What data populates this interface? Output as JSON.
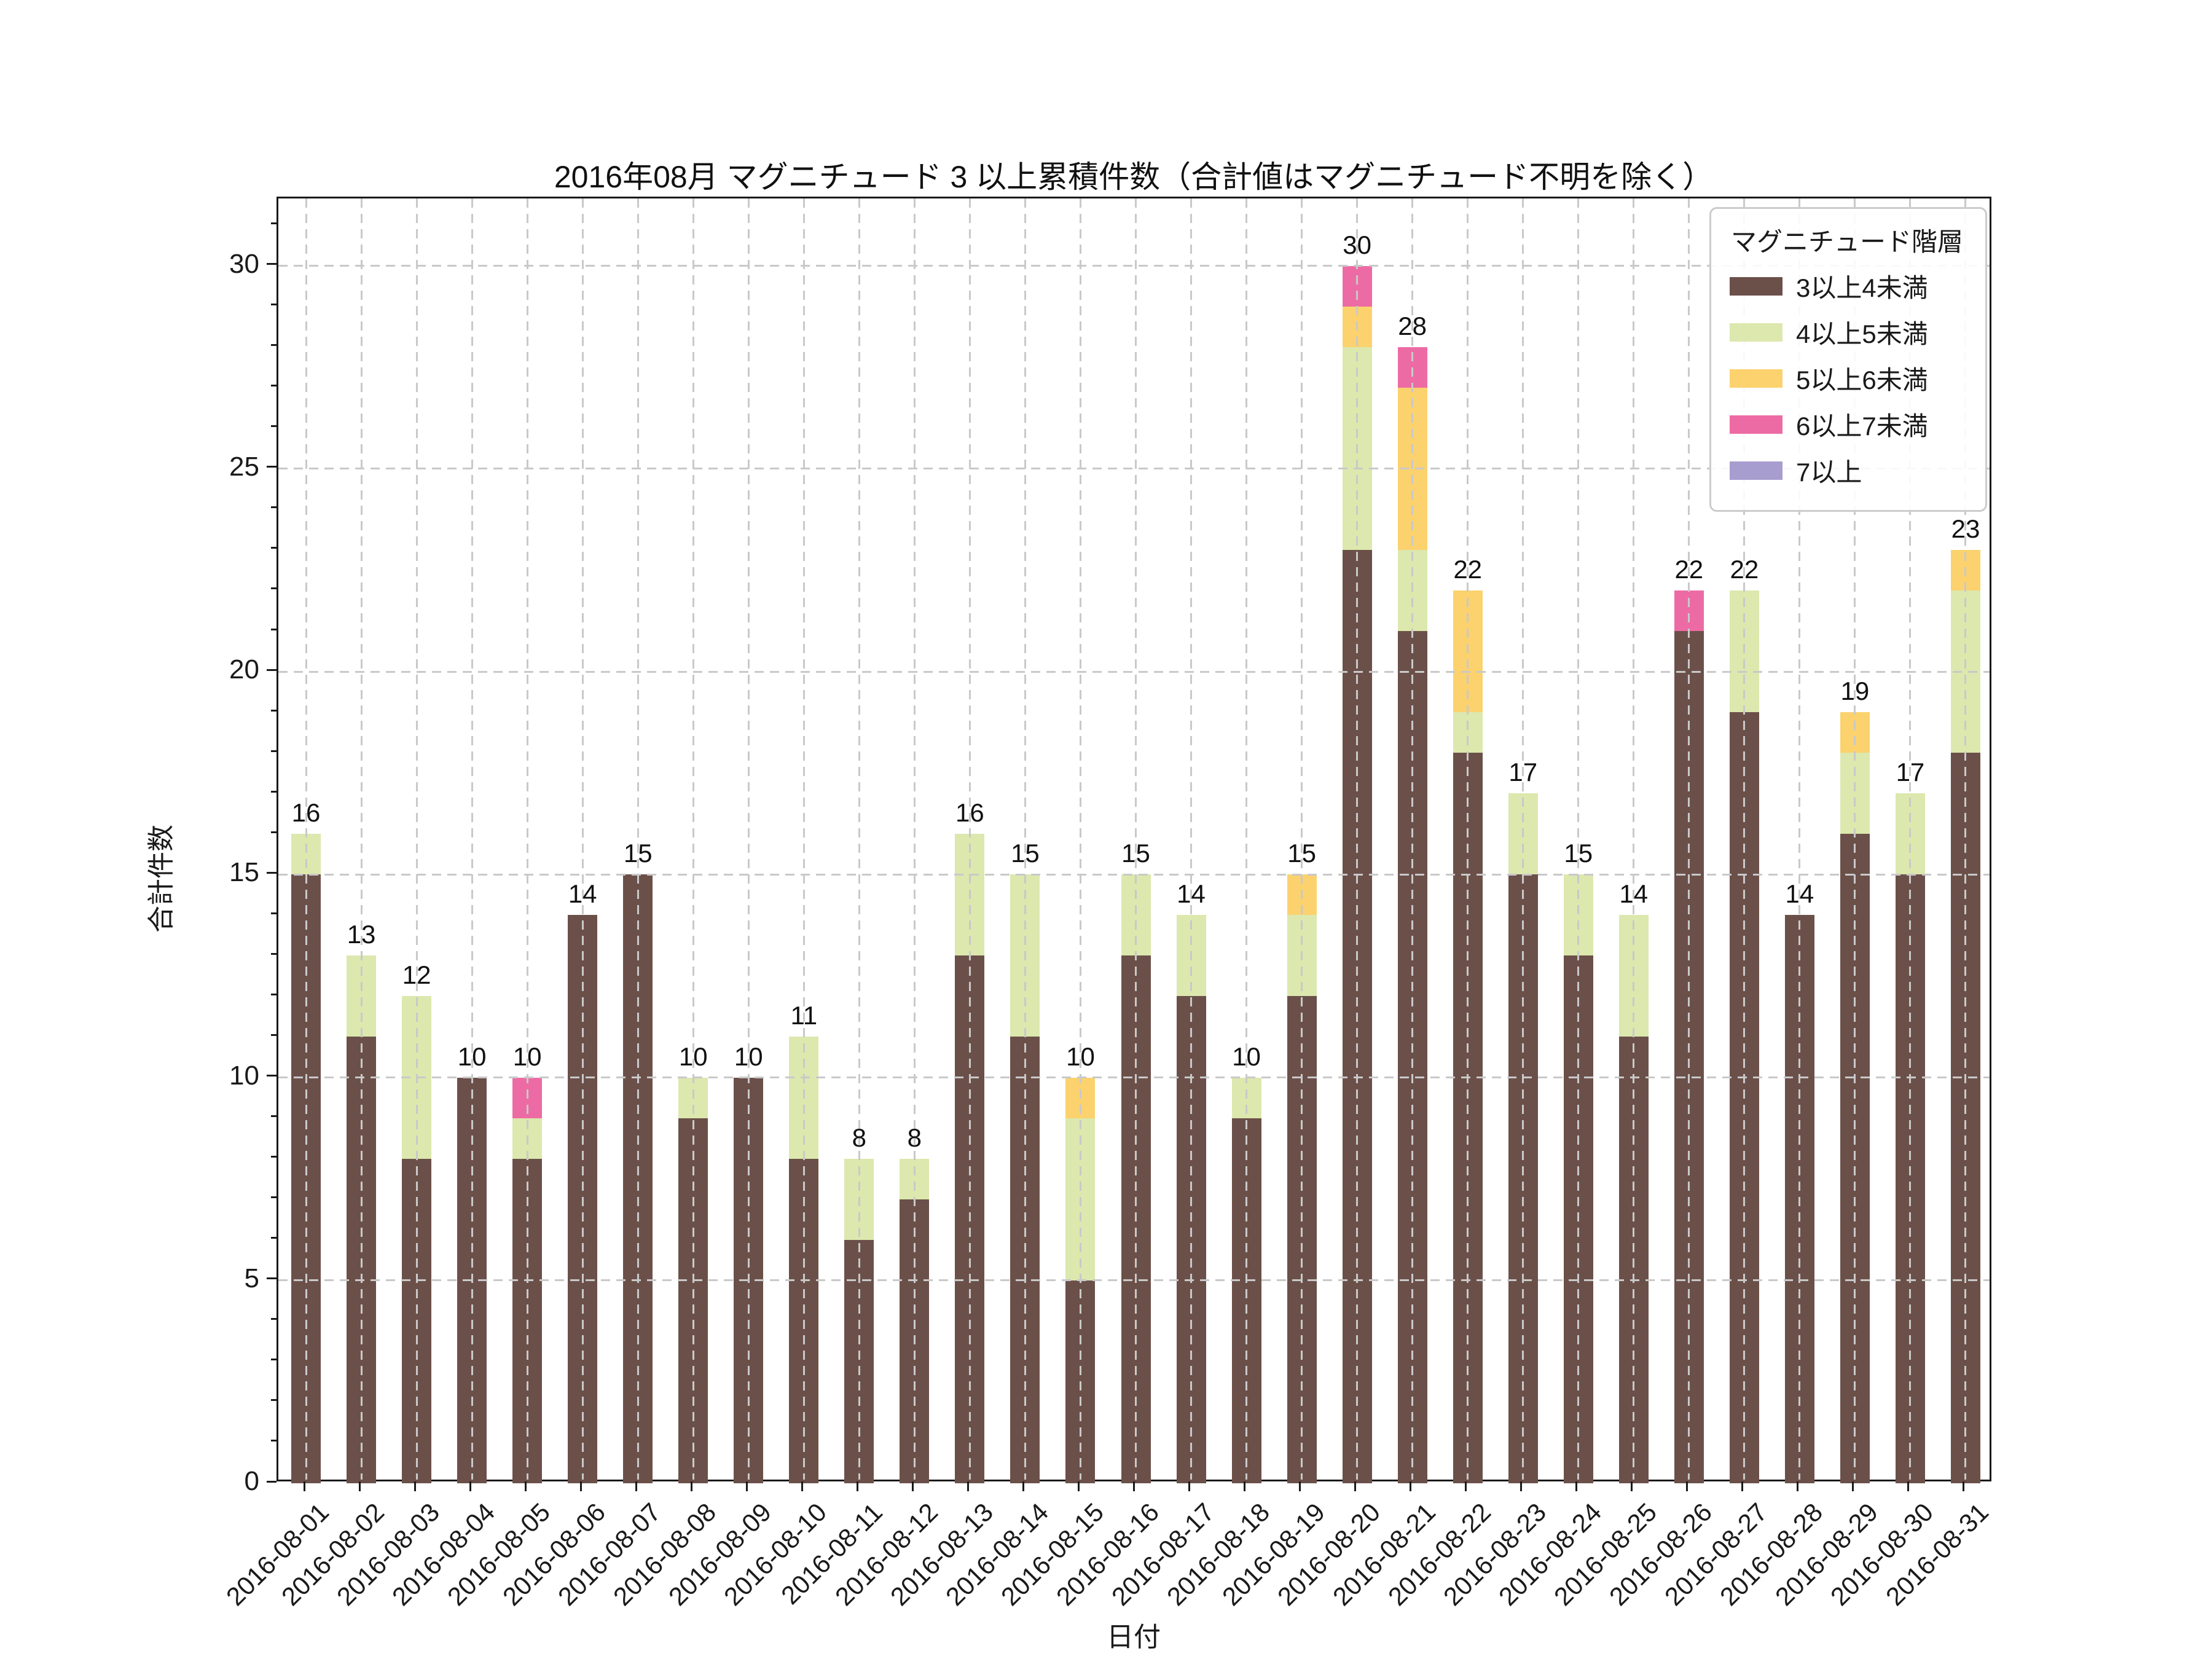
{
  "title": "2016年08月 マグニチュード 3 以上累積件数（合計値はマグニチュード不明を除く）",
  "chart_data": {
    "type": "bar",
    "stacked": true,
    "title": "2016年08月 マグニチュード 3 以上累積件数（合計値はマグニチュード不明を除く）",
    "xlabel": "日付",
    "ylabel": "合計件数",
    "ylim": [
      0,
      31.66
    ],
    "yticks": [
      0,
      5,
      10,
      15,
      20,
      25,
      30
    ],
    "grid": "dashed, both axes, drawn over bars",
    "legend_position": "upper right",
    "legend_title": "マグニチュード階層",
    "categories": [
      "2016-08-01",
      "2016-08-02",
      "2016-08-03",
      "2016-08-04",
      "2016-08-05",
      "2016-08-06",
      "2016-08-07",
      "2016-08-08",
      "2016-08-09",
      "2016-08-10",
      "2016-08-11",
      "2016-08-12",
      "2016-08-13",
      "2016-08-14",
      "2016-08-15",
      "2016-08-16",
      "2016-08-17",
      "2016-08-18",
      "2016-08-19",
      "2016-08-20",
      "2016-08-21",
      "2016-08-22",
      "2016-08-23",
      "2016-08-24",
      "2016-08-25",
      "2016-08-26",
      "2016-08-27",
      "2016-08-28",
      "2016-08-29",
      "2016-08-30",
      "2016-08-31"
    ],
    "series": [
      {
        "name": "3以上4未満",
        "color": "#6b5049",
        "values": [
          15,
          11,
          8,
          10,
          8,
          14,
          15,
          9,
          10,
          8,
          6,
          7,
          13,
          11,
          5,
          13,
          12,
          9,
          12,
          23,
          21,
          18,
          15,
          13,
          11,
          21,
          19,
          14,
          16,
          15,
          18
        ]
      },
      {
        "name": "4以上5未満",
        "color": "#dce8ae",
        "values": [
          1,
          2,
          4,
          0,
          1,
          0,
          0,
          1,
          0,
          3,
          2,
          1,
          3,
          4,
          4,
          2,
          2,
          1,
          2,
          5,
          2,
          1,
          2,
          2,
          3,
          0,
          3,
          0,
          2,
          2,
          4
        ]
      },
      {
        "name": "5以上6未満",
        "color": "#fbd26e",
        "values": [
          0,
          0,
          0,
          0,
          0,
          0,
          0,
          0,
          0,
          0,
          0,
          0,
          0,
          0,
          1,
          0,
          0,
          0,
          1,
          1,
          4,
          3,
          0,
          0,
          0,
          0,
          0,
          0,
          1,
          0,
          1
        ]
      },
      {
        "name": "6以上7未満",
        "color": "#ed6ba4",
        "values": [
          0,
          0,
          0,
          0,
          1,
          0,
          0,
          0,
          0,
          0,
          0,
          0,
          0,
          0,
          0,
          0,
          0,
          0,
          0,
          1,
          1,
          0,
          0,
          0,
          0,
          1,
          0,
          0,
          0,
          0,
          0
        ]
      },
      {
        "name": "7以上",
        "color": "#a89dcf",
        "values": [
          0,
          0,
          0,
          0,
          0,
          0,
          0,
          0,
          0,
          0,
          0,
          0,
          0,
          0,
          0,
          0,
          0,
          0,
          0,
          0,
          0,
          0,
          0,
          0,
          0,
          0,
          0,
          0,
          0,
          0,
          0
        ]
      }
    ],
    "totals": [
      16,
      13,
      12,
      10,
      10,
      14,
      15,
      10,
      10,
      11,
      8,
      8,
      16,
      15,
      10,
      15,
      14,
      10,
      15,
      30,
      28,
      22,
      17,
      15,
      14,
      22,
      22,
      14,
      19,
      17,
      23
    ]
  },
  "colors": {
    "grid": "#c9c9c9",
    "spine": "#1a1a1a",
    "background": "#ffffff"
  }
}
